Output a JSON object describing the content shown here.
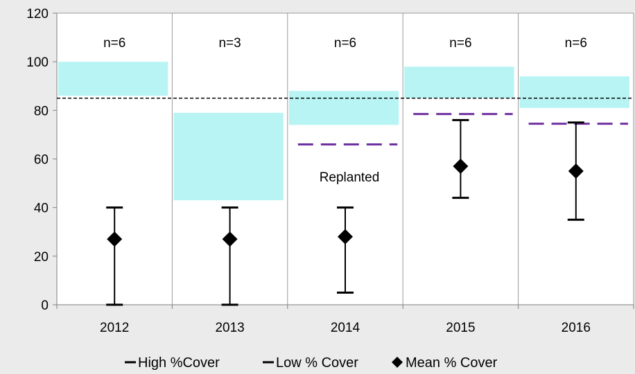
{
  "chart_data": {
    "type": "line",
    "categories": [
      "2012",
      "2013",
      "2014",
      "2015",
      "2016"
    ],
    "ylim": [
      0,
      120
    ],
    "yticks": [
      0,
      20,
      40,
      60,
      80,
      100,
      120
    ],
    "grid": "vertical category dividers only",
    "series": [
      {
        "name": "High %Cover",
        "values": [
          40,
          40,
          40,
          76,
          75
        ]
      },
      {
        "name": "Low % Cover",
        "values": [
          0,
          0,
          5,
          44,
          35
        ]
      },
      {
        "name": "Mean % Cover",
        "values": [
          27,
          27,
          28,
          57,
          55
        ]
      }
    ],
    "target_bands": [
      {
        "category": "2012",
        "low": 86,
        "high": 100
      },
      {
        "category": "2013",
        "low": 43,
        "high": 79
      },
      {
        "category": "2014",
        "low": 74,
        "high": 88
      },
      {
        "category": "2015",
        "low": 85,
        "high": 98
      },
      {
        "category": "2016",
        "low": 81,
        "high": 94
      }
    ],
    "reference_line": {
      "value": 85,
      "style": "black dashed"
    },
    "purple_dashed_lines": [
      {
        "category": "2014",
        "value": 66
      },
      {
        "category": "2015",
        "value": 78.5
      },
      {
        "category": "2016",
        "value": 74.5
      }
    ],
    "n_labels": [
      "n=6",
      "n=3",
      "n=6",
      "n=6",
      "n=6"
    ],
    "annotation": "Replanted",
    "legend_position": "bottom",
    "colors": {
      "band": "#b9f4f4",
      "purple": "#7030a0",
      "markers": "#000000",
      "background": "#ebebeb"
    }
  }
}
